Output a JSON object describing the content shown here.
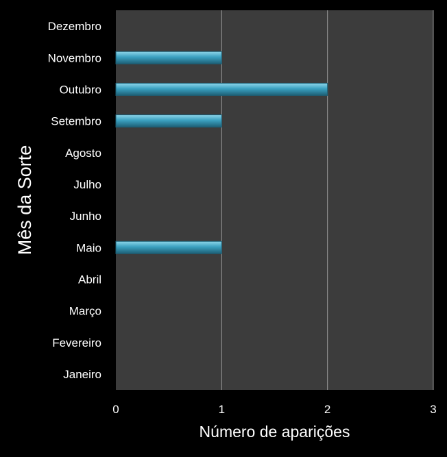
{
  "chart_data": {
    "type": "bar",
    "orientation": "horizontal",
    "categories": [
      "Janeiro",
      "Fevereiro",
      "Março",
      "Abril",
      "Maio",
      "Junho",
      "Julho",
      "Agosto",
      "Setembro",
      "Outubro",
      "Novembro",
      "Dezembro"
    ],
    "values": [
      0,
      0,
      0,
      0,
      1,
      0,
      0,
      0,
      1,
      2,
      1,
      0
    ],
    "xlabel": "Número de aparições",
    "ylabel": "Mês da Sorte",
    "xlim": [
      0,
      3
    ],
    "xticks": [
      "0",
      "1",
      "2",
      "3"
    ],
    "grid": "vertical",
    "legend": "none",
    "colors": {
      "background": "#000000",
      "plot_area": "#3c3c3c",
      "gridline": "#9a9a9a",
      "bar": "#3aa0c0",
      "bar_highlight": "#8ed6ea",
      "bar_shadow": "#1d5e74",
      "text": "#ffffff"
    }
  }
}
